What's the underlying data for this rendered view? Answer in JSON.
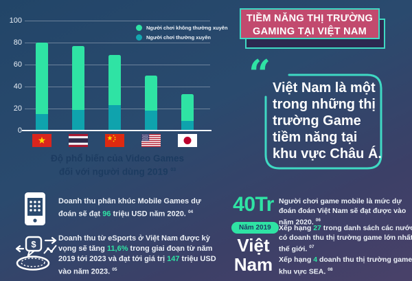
{
  "colors": {
    "background_top": "#224568",
    "background_bottom": "#494169",
    "mint_green": "#2fe3a4",
    "teal": "#0fa3ad",
    "banner_pink": "#c24a6e",
    "banner_border_teal": "#3fd9c3",
    "navy_text": "#1c3b60",
    "white": "#ffffff"
  },
  "header": {
    "line1": "TIỀM NĂNG THỊ TRƯỜNG",
    "line2": "GAMING TẠI VIỆT NAM"
  },
  "chart_data": {
    "type": "bar",
    "stacked": true,
    "title": "Độ phổ biến của Video Games đối với người dùng 2019",
    "title_lines": [
      "Độ phổ biến của Video Games",
      "đối với người dùng 2019"
    ],
    "title_superscript": "03",
    "categories": [
      "Việt Nam",
      "Thái Lan",
      "Trung Quốc",
      "Mỹ",
      "Nhật Bản"
    ],
    "series": [
      {
        "name": "Người chơi thường xuyên",
        "color": "#0fa3ad",
        "values": [
          15,
          19,
          23,
          18,
          9
        ]
      },
      {
        "name": "Người chơi không thường xuyên",
        "color": "#2fe3a4",
        "values": [
          65,
          58,
          46,
          32,
          24
        ]
      }
    ],
    "totals": [
      80,
      77,
      69,
      50,
      33
    ],
    "ylim": [
      0,
      100
    ],
    "y_ticks": [
      100,
      80,
      60,
      40,
      20,
      0
    ],
    "grid": true,
    "legend_position": "top-right",
    "legend": [
      {
        "label": "Người chơi không thường xuyên",
        "color": "#2fe3a4"
      },
      {
        "label": "Người chơi thường xuyên",
        "color": "#14a7b0"
      }
    ]
  },
  "quote": {
    "mark": "“",
    "lines": [
      "Việt Nam là một",
      "trong những thị",
      "trường Game",
      "tiềm năng tại",
      "khu vực Châu Á."
    ]
  },
  "stats_left": {
    "mobile_revenue": {
      "icon": "mobile-phone-icon",
      "segments": [
        {
          "t": "Doanh thu phân khúc Mobile Games dự đoán sẽ đạt "
        },
        {
          "t": "96",
          "hl": true
        },
        {
          "t": " triệu USD năm 2020. "
        },
        {
          "sup": "04"
        }
      ]
    },
    "esports_revenue": {
      "icon": "esports-coin-icon",
      "segments": [
        {
          "t": "Doanh thu từ eSports ở Việt Nam được kỳ vọng sẽ tăng "
        },
        {
          "t": "11,6%",
          "hl": true
        },
        {
          "t": " trong giai đoạn từ năm 2019 tới 2023 và đạt tới giá trị "
        },
        {
          "t": "147",
          "hl": true
        },
        {
          "t": " triệu USD vào năm 2023. "
        },
        {
          "sup": "05"
        }
      ]
    }
  },
  "stats_right": {
    "big_number": "40Tr",
    "mobile_players": {
      "segments": [
        {
          "t": "Người chơi game mobile là mức dự đoán đoán Việt Nam sẽ đạt được vào năm 2020. "
        },
        {
          "sup": "06"
        }
      ]
    },
    "badge": "Năm 2019",
    "country_line1": "Việt",
    "country_line2": "Nam",
    "rank_world": {
      "segments": [
        {
          "t": "Xếp hạng "
        },
        {
          "t": "27",
          "hl": true
        },
        {
          "t": " trong danh sách các nước có doanh thu thị trường game lớn nhất thế giới. "
        },
        {
          "sup": "07"
        }
      ]
    },
    "rank_sea": {
      "segments": [
        {
          "t": "Xếp hạng "
        },
        {
          "t": "4",
          "hl": true
        },
        {
          "t": " doanh thu thị trường game khu vực SEA. "
        },
        {
          "sup": "08"
        }
      ]
    }
  }
}
